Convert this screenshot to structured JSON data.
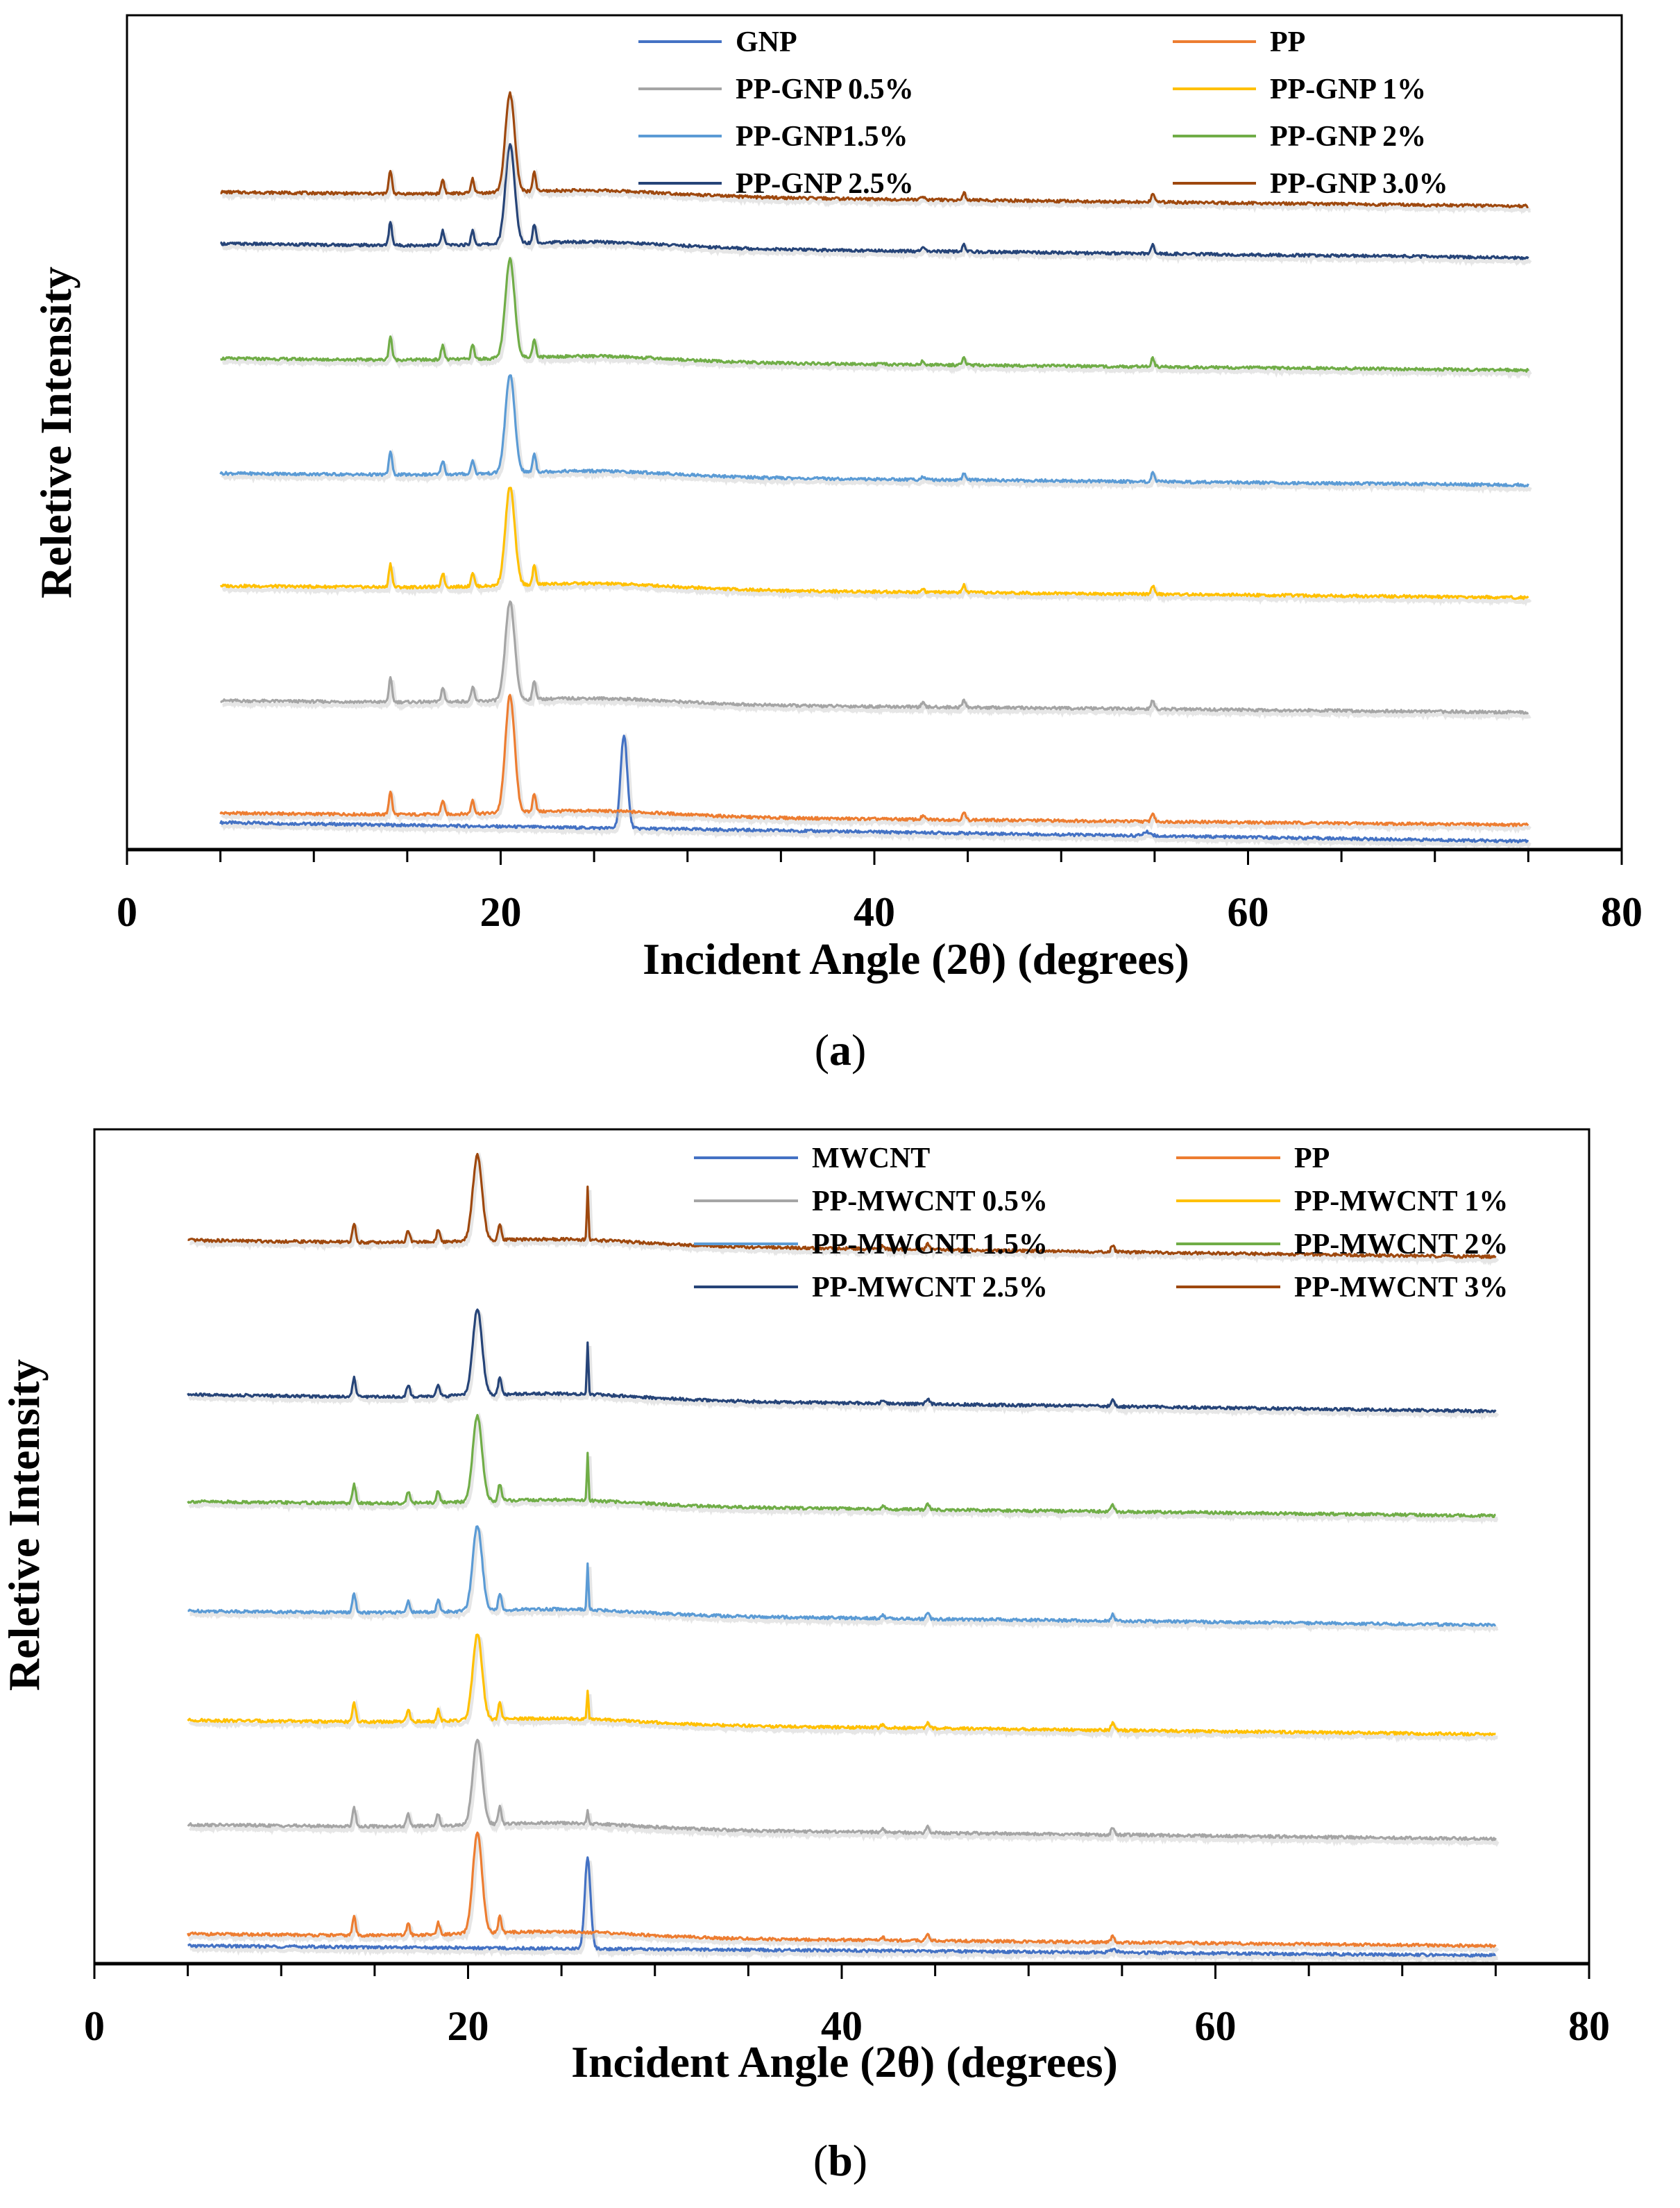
{
  "colors": {
    "GNP": "#4472C4",
    "MWCNT": "#4472C4",
    "PP": "#ED7D31",
    "c05": "#A5A5A5",
    "c10": "#FFC000",
    "c15": "#5B9BD5",
    "c20": "#70AD47",
    "c25": "#264478",
    "c30": "#9E480E"
  },
  "chart_data": [
    {
      "type": "line",
      "panel_label": "(a)",
      "panel_letter": "a",
      "xlabel": "Incident Angle (2θ) (degrees)",
      "ylabel": "Reletive Intensity",
      "xlim": [
        0,
        80
      ],
      "x_ticks": [
        0,
        20,
        40,
        60,
        80
      ],
      "x_range": [
        5,
        75
      ],
      "legend_placement": "top-right, two columns",
      "series": [
        {
          "name": "GNP",
          "color_key": "GNP",
          "kind": "gnp",
          "baseline": 0.04,
          "end": 0.0
        },
        {
          "name": "PP",
          "color_key": "PP",
          "kind": "pp",
          "baseline": 0.06,
          "end": 0.035,
          "main_peak": 0.25
        },
        {
          "name": "PP-GNP 0.5%",
          "color_key": "c05",
          "kind": "pp",
          "baseline": 0.3,
          "end": 0.275,
          "main_peak": 0.21
        },
        {
          "name": "PP-GNP 1%",
          "color_key": "c10",
          "kind": "pp",
          "baseline": 0.545,
          "end": 0.52,
          "main_peak": 0.21
        },
        {
          "name": "PP-GNP1.5%",
          "color_key": "c15",
          "kind": "pp",
          "baseline": 0.785,
          "end": 0.76,
          "main_peak": 0.21
        },
        {
          "name": "PP-GNP 2%",
          "color_key": "c20",
          "kind": "pp",
          "baseline": 1.03,
          "end": 1.005,
          "main_peak": 0.21
        },
        {
          "name": "PP-GNP 2.5%",
          "color_key": "c25",
          "kind": "pp",
          "baseline": 1.275,
          "end": 1.245,
          "main_peak": 0.21
        },
        {
          "name": "PP-GNP 3.0%",
          "color_key": "c30",
          "kind": "pp",
          "baseline": 1.385,
          "end": 1.355,
          "main_peak": 0.21
        }
      ],
      "peaks": {
        "gnp": {
          "x": 26.6,
          "height": 0.2
        },
        "pp": [
          {
            "x": 14.1,
            "height": 0.05
          },
          {
            "x": 16.9,
            "height": 0.03
          },
          {
            "x": 18.5,
            "height": 0.03
          },
          {
            "x": 21.8,
            "height": 0.04
          },
          {
            "x": 42.6,
            "height": 0.008
          },
          {
            "x": 44.8,
            "height": 0.015
          },
          {
            "x": 54.9,
            "height": 0.018
          }
        ],
        "pp_main_x": 20.5
      }
    },
    {
      "type": "line",
      "panel_label": "(b)",
      "panel_letter": "b",
      "xlabel": "Incident Angle (2θ) (degrees)",
      "ylabel": "Reletive Intensity",
      "xlim": [
        0,
        80
      ],
      "x_ticks": [
        0,
        20,
        40,
        60,
        80
      ],
      "x_range": [
        5,
        75
      ],
      "legend_placement": "top-right, two columns",
      "series": [
        {
          "name": "MWCNT",
          "color_key": "MWCNT",
          "kind": "cnt",
          "baseline": 0.02,
          "end": 0.0
        },
        {
          "name": "PP",
          "color_key": "PP",
          "kind": "pp",
          "baseline": 0.045,
          "end": 0.02,
          "main_peak": 0.21,
          "cnt_peak": 0.0
        },
        {
          "name": "PP-MWCNT 0.5%",
          "color_key": "c05",
          "kind": "pp",
          "baseline": 0.275,
          "end": 0.245,
          "main_peak": 0.18,
          "cnt_peak": 0.03
        },
        {
          "name": "PP-MWCNT 1%",
          "color_key": "c10",
          "kind": "pp",
          "baseline": 0.495,
          "end": 0.465,
          "main_peak": 0.18,
          "cnt_peak": 0.06
        },
        {
          "name": "PP-MWCNT 1.5%",
          "color_key": "c15",
          "kind": "pp",
          "baseline": 0.725,
          "end": 0.695,
          "main_peak": 0.18,
          "cnt_peak": 0.1
        },
        {
          "name": "PP-MWCNT 2%",
          "color_key": "c20",
          "kind": "pp",
          "baseline": 0.955,
          "end": 0.925,
          "main_peak": 0.18,
          "cnt_peak": 0.1
        },
        {
          "name": "PP-MWCNT 2.5%",
          "color_key": "c25",
          "kind": "pp",
          "baseline": 1.18,
          "end": 1.145,
          "main_peak": 0.18,
          "cnt_peak": 0.11
        },
        {
          "name": "PP-MWCNT 3%",
          "color_key": "c30",
          "kind": "pp",
          "baseline": 1.505,
          "end": 1.47,
          "main_peak": 0.18,
          "cnt_peak": 0.11
        }
      ],
      "peaks": {
        "cnt": {
          "x": 26.4,
          "height": 0.19
        },
        "pp": [
          {
            "x": 13.9,
            "height": 0.04
          },
          {
            "x": 16.8,
            "height": 0.025
          },
          {
            "x": 18.4,
            "height": 0.025
          },
          {
            "x": 21.7,
            "height": 0.035
          },
          {
            "x": 42.2,
            "height": 0.007
          },
          {
            "x": 44.6,
            "height": 0.012
          },
          {
            "x": 54.5,
            "height": 0.015
          }
        ],
        "pp_main_x": 20.5,
        "cnt_x": 26.4
      }
    }
  ]
}
